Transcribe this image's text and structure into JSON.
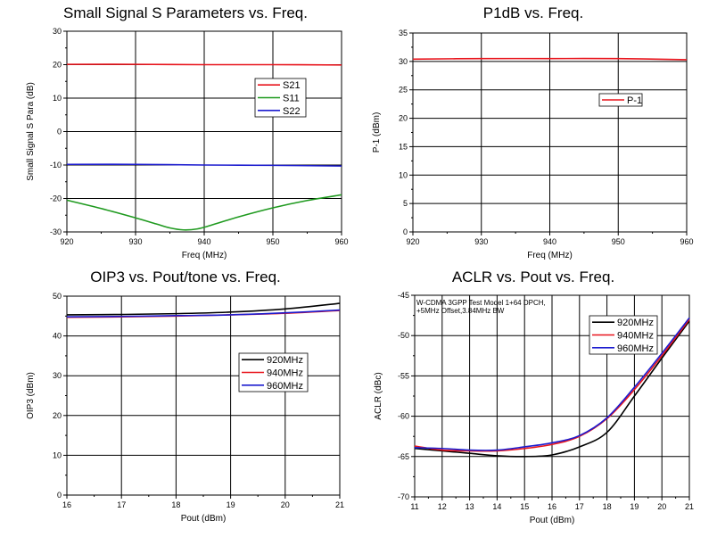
{
  "chart_data": [
    {
      "type": "line",
      "title": "Small Signal S Parameters vs. Freq.",
      "xlabel": "Freq (MHz)",
      "ylabel": "Small Signal S Para (dB)",
      "xlim": [
        920,
        960
      ],
      "ylim": [
        -30,
        30
      ],
      "xticks": [
        920,
        930,
        940,
        950,
        960
      ],
      "yticks": [
        -30,
        -20,
        -10,
        0,
        10,
        20,
        30
      ],
      "grid": true,
      "legend": "center-right",
      "annotation": "",
      "series": [
        {
          "name": "S21",
          "color": "#e8141c",
          "x": [
            920,
            930,
            940,
            950,
            960
          ],
          "y": [
            20.1,
            20.1,
            20.0,
            20.0,
            19.9
          ]
        },
        {
          "name": "S11",
          "color": "#1f9a1f",
          "x": [
            920,
            925,
            930,
            933,
            935,
            937,
            939,
            941,
            945,
            950,
            955,
            960
          ],
          "y": [
            -20.5,
            -23.0,
            -25.8,
            -27.6,
            -28.8,
            -29.4,
            -29.1,
            -28.0,
            -25.5,
            -22.8,
            -20.6,
            -18.9
          ]
        },
        {
          "name": "S22",
          "color": "#1c1ccf",
          "x": [
            920,
            930,
            940,
            950,
            960
          ],
          "y": [
            -9.8,
            -9.8,
            -10.0,
            -10.1,
            -10.3
          ]
        }
      ]
    },
    {
      "type": "line",
      "title": "P1dB vs. Freq.",
      "xlabel": "Freq (MHz)",
      "ylabel": "P-1 (dBm)",
      "xlim": [
        920,
        960
      ],
      "ylim": [
        0,
        35
      ],
      "xticks": [
        920,
        930,
        940,
        950,
        960
      ],
      "yticks": [
        0,
        5,
        10,
        15,
        20,
        25,
        30,
        35
      ],
      "grid": true,
      "legend": "center-right",
      "annotation": "",
      "series": [
        {
          "name": "P-1",
          "color": "#e8141c",
          "x": [
            920,
            930,
            940,
            950,
            960
          ],
          "y": [
            30.4,
            30.5,
            30.5,
            30.5,
            30.3
          ]
        }
      ]
    },
    {
      "type": "line",
      "title": "OIP3 vs. Pout/tone vs. Freq.",
      "xlabel": "Pout (dBm)",
      "ylabel": "OIP3 (dBm)",
      "xlim": [
        16,
        21
      ],
      "ylim": [
        0,
        50
      ],
      "xticks": [
        16,
        17,
        18,
        19,
        20,
        21
      ],
      "yticks": [
        0,
        10,
        20,
        30,
        40,
        50
      ],
      "grid": true,
      "legend": "center-right",
      "annotation": "",
      "series": [
        {
          "name": "920MHz",
          "color": "#000000",
          "x": [
            16,
            17,
            18,
            19,
            20,
            21
          ],
          "y": [
            45.3,
            45.4,
            45.6,
            46.0,
            46.8,
            48.2
          ]
        },
        {
          "name": "940MHz",
          "color": "#e8141c",
          "x": [
            16,
            17,
            18,
            19,
            20,
            21
          ],
          "y": [
            44.7,
            44.8,
            45.0,
            45.3,
            45.7,
            46.4
          ]
        },
        {
          "name": "960MHz",
          "color": "#1c1ccf",
          "x": [
            16,
            17,
            18,
            19,
            20,
            21
          ],
          "y": [
            44.8,
            44.9,
            45.1,
            45.3,
            45.8,
            46.5
          ]
        }
      ]
    },
    {
      "type": "line",
      "title": "ACLR vs. Pout vs. Freq.",
      "xlabel": "Pout (dBm)",
      "ylabel": "ACLR (dBc)",
      "xlim": [
        11,
        21
      ],
      "ylim": [
        -70,
        -45
      ],
      "xticks": [
        11,
        12,
        13,
        14,
        15,
        16,
        17,
        18,
        19,
        20,
        21
      ],
      "yticks": [
        -70,
        -65,
        -60,
        -55,
        -50,
        -45
      ],
      "grid": true,
      "legend": "top-right",
      "annotation": [
        "W-CDMA 3GPP Test Model 1+64 DPCH,",
        "+5MHz Offset,3.84MHz BW"
      ],
      "series": [
        {
          "name": "920MHz",
          "color": "#000000",
          "x": [
            11,
            12,
            13,
            14,
            15,
            16,
            17,
            18,
            19,
            20,
            21
          ],
          "y": [
            -64.0,
            -64.3,
            -64.6,
            -64.9,
            -65.0,
            -64.8,
            -63.8,
            -62.0,
            -57.5,
            -52.8,
            -48.2
          ]
        },
        {
          "name": "940MHz",
          "color": "#e8141c",
          "x": [
            11,
            12,
            13,
            14,
            15,
            16,
            17,
            18,
            19,
            20,
            21
          ],
          "y": [
            -63.7,
            -64.2,
            -64.3,
            -64.3,
            -64.0,
            -63.5,
            -62.5,
            -60.3,
            -56.7,
            -52.5,
            -48.0
          ]
        },
        {
          "name": "960MHz",
          "color": "#1c1ccf",
          "x": [
            11,
            12,
            13,
            14,
            15,
            16,
            17,
            18,
            19,
            20,
            21
          ],
          "y": [
            -63.9,
            -64.0,
            -64.2,
            -64.2,
            -63.8,
            -63.3,
            -62.4,
            -60.2,
            -56.4,
            -52.2,
            -47.8
          ]
        }
      ]
    }
  ]
}
